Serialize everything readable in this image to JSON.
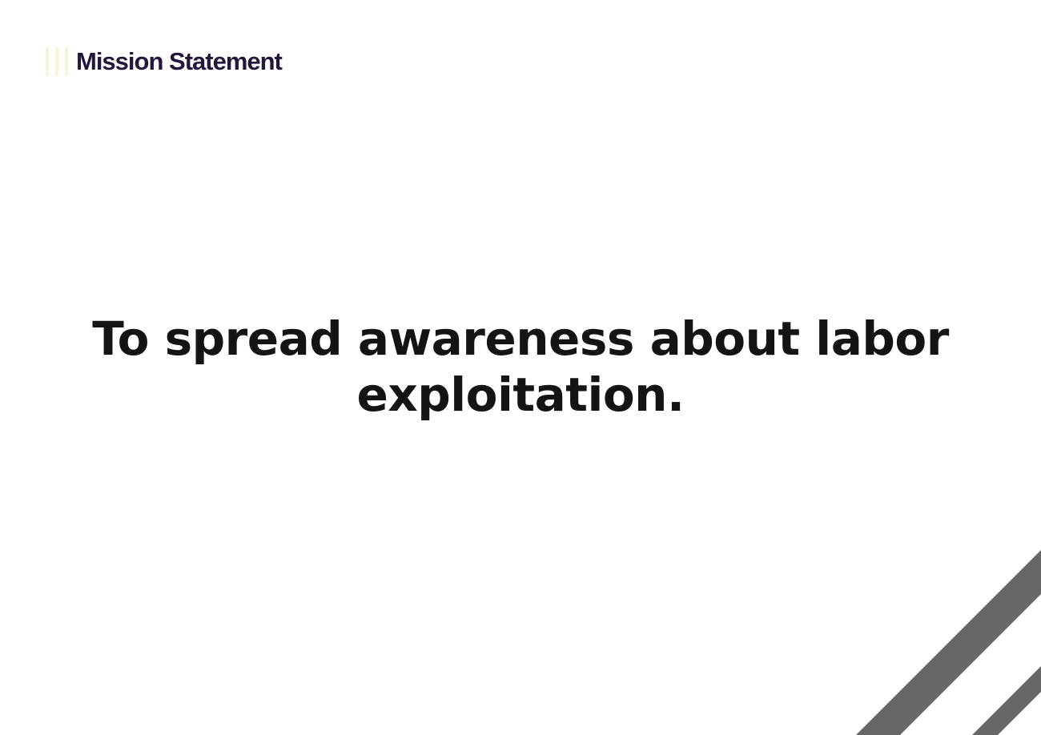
{
  "header": {
    "title": "Mission Statement",
    "accent_color": "#f7f4d9",
    "title_color": "#24163a"
  },
  "body": {
    "mission_text": "To spread awareness about labor exploitation."
  },
  "decoration": {
    "stripe_color": "#666766"
  }
}
